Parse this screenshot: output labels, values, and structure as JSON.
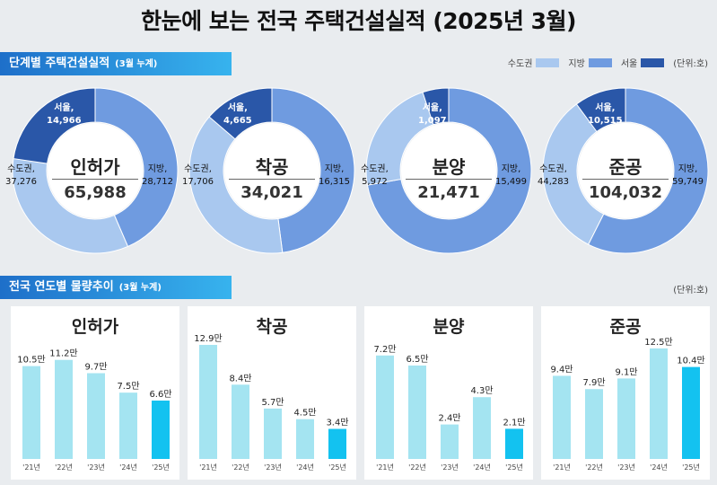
{
  "title": "한눈에 보는 전국 주택건설실적 (2025년 3월)",
  "section1": {
    "label": "단계별 주택건설실적",
    "sub": "(3월 누계)"
  },
  "section2": {
    "label": "전국 연도별 물량추이",
    "sub": "(3월 누계)"
  },
  "legend": {
    "items": [
      {
        "label": "수도권",
        "color": "#a9c8ef"
      },
      {
        "label": "지방",
        "color": "#6f9be0"
      },
      {
        "label": "서울",
        "color": "#2a57a8"
      }
    ],
    "unit": "(단위:호)"
  },
  "unit2": "(단위:호)",
  "chart_data": [
    {
      "type": "pie",
      "title": "인허가",
      "total": "65,988",
      "slices": [
        {
          "name": "수도권",
          "value": 37276,
          "label": "37,276"
        },
        {
          "name": "지방",
          "value": 28712,
          "label": "28,712"
        },
        {
          "name": "서울",
          "value": 14966,
          "label": "14,966"
        }
      ]
    },
    {
      "type": "pie",
      "title": "착공",
      "total": "34,021",
      "slices": [
        {
          "name": "수도권",
          "value": 17706,
          "label": "17,706"
        },
        {
          "name": "지방",
          "value": 16315,
          "label": "16,315"
        },
        {
          "name": "서울",
          "value": 4665,
          "label": "4,665"
        }
      ]
    },
    {
      "type": "pie",
      "title": "분양",
      "total": "21,471",
      "slices": [
        {
          "name": "수도권",
          "value": 5972,
          "label": "5,972"
        },
        {
          "name": "지방",
          "value": 15499,
          "label": "15,499"
        },
        {
          "name": "서울",
          "value": 1097,
          "label": "1,097"
        }
      ]
    },
    {
      "type": "pie",
      "title": "준공",
      "total": "104,032",
      "slices": [
        {
          "name": "수도권",
          "value": 44283,
          "label": "44,283"
        },
        {
          "name": "지방",
          "value": 59749,
          "label": "59,749"
        },
        {
          "name": "서울",
          "value": 10515,
          "label": "10,515"
        }
      ]
    },
    {
      "type": "bar",
      "title": "인허가",
      "categories": [
        "'21년",
        "'22년",
        "'23년",
        "'24년",
        "'25년"
      ],
      "values": [
        10.5,
        11.2,
        9.7,
        7.5,
        6.6
      ],
      "labels": [
        "10.5만",
        "11.2만",
        "9.7만",
        "7.5만",
        "6.6만"
      ],
      "ylim": [
        0,
        13
      ]
    },
    {
      "type": "bar",
      "title": "착공",
      "categories": [
        "'21년",
        "'22년",
        "'23년",
        "'24년",
        "'25년"
      ],
      "values": [
        12.9,
        8.4,
        5.7,
        4.5,
        3.4
      ],
      "labels": [
        "12.9만",
        "8.4만",
        "5.7만",
        "4.5만",
        "3.4만"
      ],
      "ylim": [
        0,
        13
      ]
    },
    {
      "type": "bar",
      "title": "분양",
      "categories": [
        "'21년",
        "'22년",
        "'23년",
        "'24년",
        "'25년"
      ],
      "values": [
        7.2,
        6.5,
        2.4,
        4.3,
        2.1
      ],
      "labels": [
        "7.2만",
        "6.5만",
        "2.4만",
        "4.3만",
        "2.1만"
      ],
      "ylim": [
        0,
        8
      ]
    },
    {
      "type": "bar",
      "title": "준공",
      "categories": [
        "'21년",
        "'22년",
        "'23년",
        "'24년",
        "'25년"
      ],
      "values": [
        9.4,
        7.9,
        9.1,
        12.5,
        10.4
      ],
      "labels": [
        "9.4만",
        "7.9만",
        "9.1만",
        "12.5만",
        "10.4만"
      ],
      "ylim": [
        0,
        13
      ]
    }
  ],
  "colors": {
    "metro": "#a9c8ef",
    "local": "#6f9be0",
    "seoul": "#2a57a8",
    "bar": "#a4e4f1",
    "bar_current": "#13c2f0"
  }
}
